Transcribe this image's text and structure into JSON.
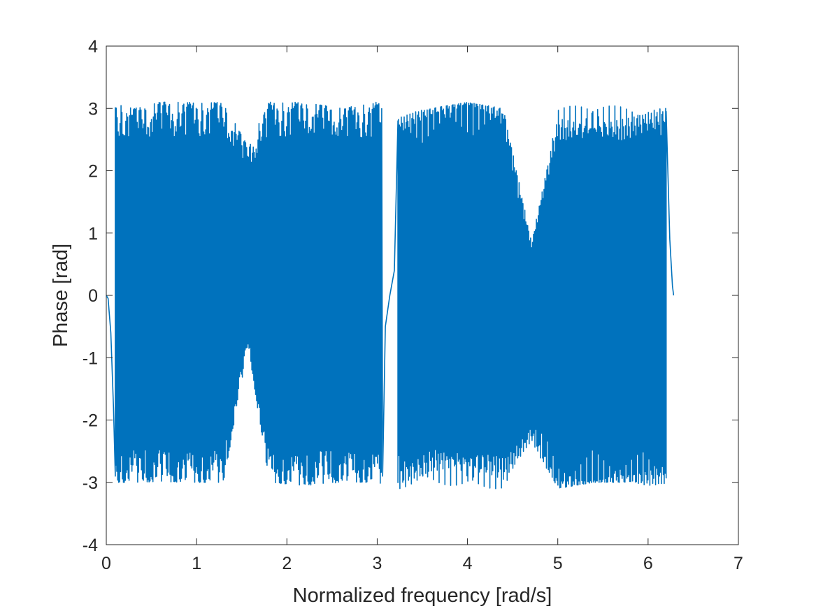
{
  "chart_data": {
    "type": "line",
    "title": "",
    "xlabel": "Normalized frequency [rad/s]",
    "ylabel": "Phase [rad]",
    "xlim": [
      0,
      7
    ],
    "ylim": [
      -4,
      4
    ],
    "xticks": [
      0,
      1,
      2,
      3,
      4,
      5,
      6,
      7
    ],
    "yticks": [
      -4,
      -3,
      -2,
      -1,
      0,
      1,
      2,
      3,
      4
    ],
    "xtick_labels": [
      "0",
      "1",
      "2",
      "3",
      "4",
      "5",
      "6",
      "7"
    ],
    "ytick_labels": [
      "-4",
      "-3",
      "-2",
      "-1",
      "0",
      "1",
      "2",
      "3",
      "4"
    ],
    "grid": false,
    "legend": "none",
    "series": [
      {
        "color": "#0072BD",
        "x_range": [
          0,
          6.283
        ],
        "description_points": {
          "x": [
            0,
            0.02,
            0.05,
            0.08,
            0.1,
            0.12,
            0.2,
            0.4,
            0.8,
            1.0,
            1.05,
            1.2,
            1.5,
            1.57,
            1.65,
            2.0,
            2.1,
            2.5,
            2.9,
            3.0,
            3.05,
            3.08,
            3.14,
            3.2,
            3.23,
            3.3,
            3.8,
            4.15,
            4.2,
            4.5,
            4.71,
            4.9,
            5.2,
            5.25,
            5.6,
            6.0,
            6.15,
            6.2,
            6.25,
            6.283
          ],
          "y": [
            0,
            -0.05,
            -0.6,
            -1.8,
            -2.9,
            3.1,
            2.9,
            2.6,
            2.7,
            2.9,
            1.45,
            2.5,
            2.1,
            2.38,
            1.9,
            2.9,
            1.45,
            2.6,
            2.9,
            3.1,
            -3.0,
            -0.3,
            0,
            0.3,
            2.8,
            -3.0,
            -3.05,
            -2.0,
            -2.2,
            -3.1,
            -2.35,
            -3.1,
            -2.0,
            -1.4,
            -3.05,
            -2.9,
            -3.05,
            2.95,
            0.6,
            0
          ]
        },
        "envelope": {
          "x": [
            0.1,
            0.3,
            0.6,
            1.0,
            1.3,
            1.57,
            1.8,
            2.2,
            2.6,
            3.0,
            3.25,
            3.6,
            4.0,
            4.4,
            4.71,
            5.0,
            5.4,
            5.8,
            6.2
          ],
          "upper": [
            3.1,
            3.0,
            3.1,
            3.1,
            3.1,
            2.38,
            3.1,
            3.1,
            3.0,
            3.1,
            2.9,
            3.0,
            3.1,
            3.0,
            0.85,
            3.0,
            3.1,
            3.0,
            3.0
          ],
          "lower": [
            -3.0,
            -3.0,
            -3.0,
            -3.0,
            -3.0,
            -0.8,
            -3.0,
            -3.05,
            -3.0,
            -3.0,
            -3.1,
            -3.0,
            -3.1,
            -3.1,
            -2.35,
            -3.1,
            -3.0,
            -3.0,
            -3.1
          ]
        }
      }
    ]
  }
}
